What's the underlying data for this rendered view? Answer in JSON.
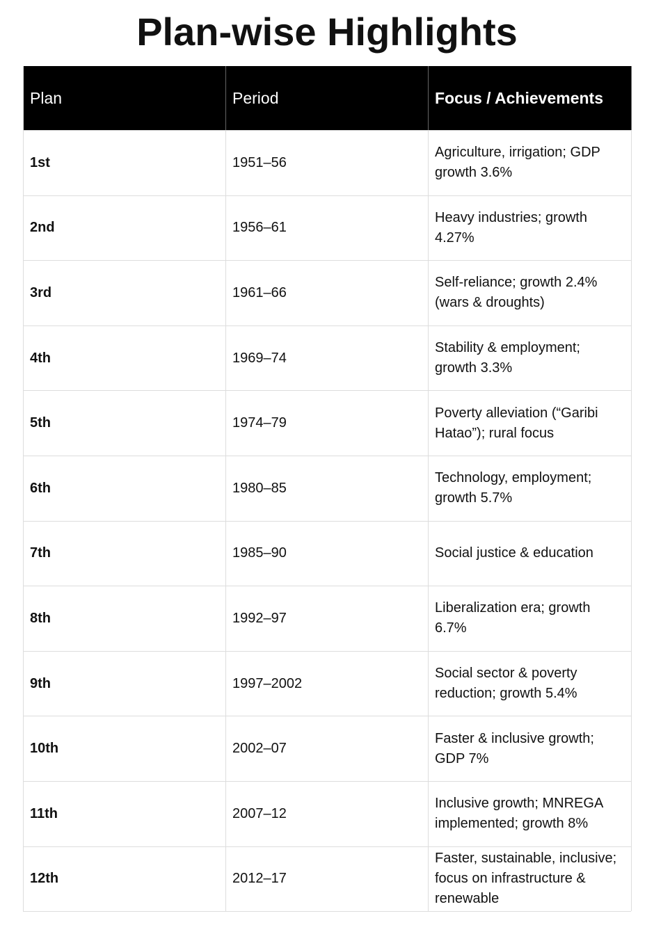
{
  "title": "Plan-wise Highlights",
  "table": {
    "header": [
      "Plan",
      "Period",
      "Focus / Achievements"
    ],
    "rows": [
      [
        "1st",
        "1951–56",
        "Agriculture, irrigation; GDP growth 3.6%"
      ],
      [
        "2nd",
        "1956–61",
        "Heavy industries; growth 4.27%"
      ],
      [
        "3rd",
        "1961–66",
        "Self-reliance; growth 2.4% (wars & droughts)"
      ],
      [
        "4th",
        "1969–74",
        "Stability & employment; growth 3.3%"
      ],
      [
        "5th",
        "1974–79",
        "Poverty alleviation (“Garibi Hatao”); rural focus"
      ],
      [
        "6th",
        "1980–85",
        "Technology, employment; growth 5.7%"
      ],
      [
        "7th",
        "1985–90",
        "Social justice & education"
      ],
      [
        "8th",
        "1992–97",
        "Liberalization era; growth 6.7%"
      ],
      [
        "9th",
        "1997–2002",
        "Social sector & poverty reduction; growth 5.4%"
      ],
      [
        "10th",
        "2002–07",
        "Faster & inclusive growth; GDP 7%"
      ],
      [
        "11th",
        "2007–12",
        "Inclusive growth; MNREGA implemented; growth 8%"
      ],
      [
        "12th",
        "2012–17",
        "Faster, sustainable, inclusive; focus on infrastructure & renewable"
      ]
    ]
  }
}
